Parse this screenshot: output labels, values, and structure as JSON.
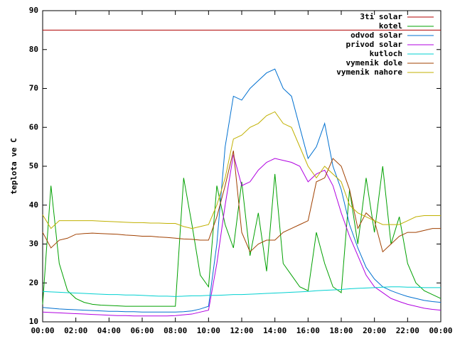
{
  "chart_data": {
    "type": "line",
    "y_label": "teplota ve C",
    "x": [
      0,
      0.5,
      1,
      1.5,
      2,
      2.5,
      3,
      3.5,
      4,
      4.5,
      5,
      5.5,
      6,
      6.5,
      7,
      7.5,
      8,
      8.5,
      9,
      9.5,
      10,
      10.5,
      11,
      11.5,
      12,
      12.5,
      13,
      13.5,
      14,
      14.5,
      15,
      15.5,
      16,
      16.5,
      17,
      17.5,
      18,
      18.5,
      19,
      19.5,
      20,
      20.5,
      21,
      21.5,
      22,
      22.5,
      23,
      23.5,
      24
    ],
    "xlim": [
      0,
      24
    ],
    "xticks": [
      {
        "value": 0,
        "label": "00:00"
      },
      {
        "value": 2,
        "label": "02:00"
      },
      {
        "value": 4,
        "label": "04:00"
      },
      {
        "value": 6,
        "label": "06:00"
      },
      {
        "value": 8,
        "label": "08:00"
      },
      {
        "value": 10,
        "label": "10:00"
      },
      {
        "value": 12,
        "label": "12:00"
      },
      {
        "value": 14,
        "label": "14:00"
      },
      {
        "value": 16,
        "label": "16:00"
      },
      {
        "value": 18,
        "label": "18:00"
      },
      {
        "value": 20,
        "label": "20:00"
      },
      {
        "value": 22,
        "label": "22:00"
      },
      {
        "value": 24,
        "label": "00:00"
      }
    ],
    "ylim": [
      10,
      90
    ],
    "yticks": [
      10,
      20,
      30,
      40,
      50,
      60,
      70,
      80,
      90
    ],
    "legend": "top-right",
    "series": [
      {
        "name": "3ti solar",
        "color": "#b00000",
        "values": [
          85,
          85,
          85,
          85,
          85,
          85,
          85,
          85,
          85,
          85,
          85,
          85,
          85,
          85,
          85,
          85,
          85,
          85,
          85,
          85,
          85,
          85,
          85,
          85,
          85,
          85,
          85,
          85,
          85,
          85,
          85,
          85,
          85,
          85,
          85,
          85,
          85,
          85,
          85,
          85,
          85,
          85,
          85,
          85,
          85,
          85,
          85,
          85,
          85
        ]
      },
      {
        "name": "kotel",
        "color": "#00a000",
        "values": [
          14.5,
          45,
          25,
          18,
          16,
          15,
          14.5,
          14.3,
          14.2,
          14.1,
          14,
          14,
          14,
          14,
          14,
          14,
          14,
          47,
          35,
          22,
          19,
          45,
          35,
          29,
          46,
          27,
          38,
          23,
          48,
          25,
          22,
          19,
          18,
          33,
          25,
          19,
          17.5,
          44,
          30,
          47,
          33,
          50,
          30,
          37,
          25,
          20,
          18,
          17,
          16
        ]
      },
      {
        "name": "odvod solar",
        "color": "#0070d0",
        "values": [
          13.7,
          13.5,
          13.3,
          13.2,
          13.1,
          13,
          12.9,
          12.8,
          12.7,
          12.7,
          12.6,
          12.6,
          12.5,
          12.5,
          12.5,
          12.5,
          12.5,
          12.6,
          12.8,
          13.3,
          14,
          30,
          55,
          68,
          67,
          70,
          72,
          74,
          75,
          70,
          68,
          60,
          52,
          55,
          61,
          50,
          44,
          35,
          29,
          24,
          21,
          19,
          18,
          17.2,
          16.5,
          16,
          15.5,
          15.2,
          15
        ]
      },
      {
        "name": "privod solar",
        "color": "#b000e0",
        "values": [
          12.5,
          12.4,
          12.3,
          12.2,
          12.1,
          12,
          11.9,
          11.8,
          11.7,
          11.6,
          11.6,
          11.5,
          11.5,
          11.5,
          11.5,
          11.5,
          11.6,
          11.8,
          12,
          12.5,
          13,
          25,
          40,
          53,
          45,
          46,
          49,
          51,
          52,
          51.5,
          51,
          50,
          46,
          48,
          49,
          45,
          38,
          32,
          27,
          22,
          19,
          17.5,
          16,
          15.2,
          14.5,
          14,
          13.5,
          13.2,
          13
        ]
      },
      {
        "name": "kutloch",
        "color": "#00d0d0",
        "values": [
          17.8,
          17.7,
          17.6,
          17.5,
          17.4,
          17.3,
          17.2,
          17.1,
          17,
          17,
          16.9,
          16.9,
          16.8,
          16.7,
          16.6,
          16.6,
          16.5,
          16.6,
          16.7,
          16.7,
          16.8,
          16.8,
          16.9,
          17,
          17,
          17.1,
          17.2,
          17.3,
          17.4,
          17.5,
          17.6,
          17.7,
          17.8,
          18,
          18.1,
          18.2,
          18.3,
          18.5,
          18.6,
          18.7,
          18.8,
          18.9,
          19,
          19,
          18.9,
          18.9,
          18.8,
          18.8,
          18.8
        ]
      },
      {
        "name": "vymenik dole",
        "color": "#a04000",
        "values": [
          33,
          29,
          31,
          31.5,
          32.5,
          32.7,
          32.8,
          32.7,
          32.6,
          32.5,
          32.3,
          32.2,
          32,
          32,
          31.8,
          31.7,
          31.5,
          31.3,
          31.2,
          31,
          31,
          37,
          45,
          54,
          33,
          28,
          30,
          31,
          31,
          33,
          34,
          35,
          36,
          46,
          47,
          52,
          50,
          44,
          34,
          38,
          36,
          28,
          30,
          32,
          33,
          33,
          33.5,
          34,
          34
        ]
      },
      {
        "name": "vymenik nahore",
        "color": "#c0b000",
        "values": [
          37.5,
          34,
          36,
          36,
          36,
          36,
          36,
          35.9,
          35.8,
          35.7,
          35.6,
          35.5,
          35.5,
          35.4,
          35.4,
          35.3,
          35.3,
          34.5,
          34,
          34.5,
          35,
          40,
          47,
          57,
          58,
          60,
          61,
          63,
          64,
          61,
          60,
          55,
          50,
          47,
          50,
          48,
          46,
          40,
          38,
          37,
          36,
          35,
          35,
          35,
          36,
          37,
          37.3,
          37.3,
          37.3
        ]
      }
    ]
  }
}
